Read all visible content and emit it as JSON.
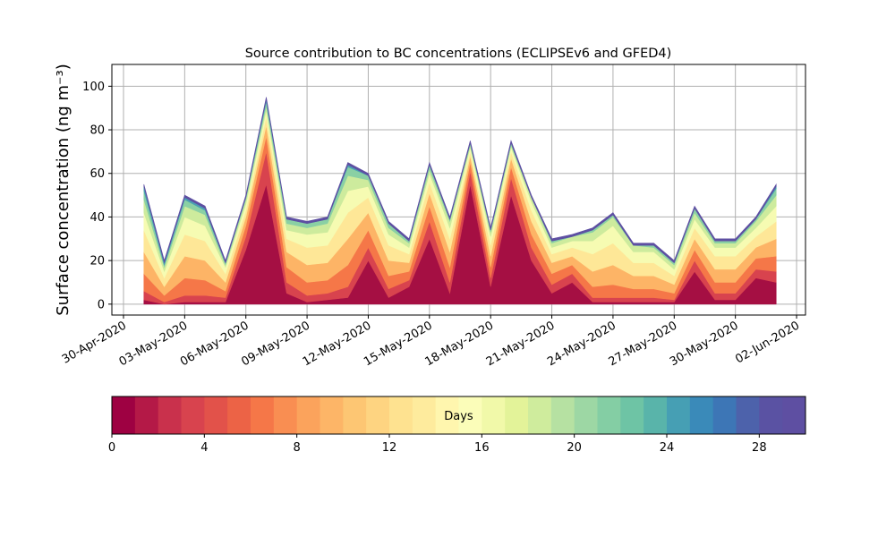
{
  "chart_data": {
    "type": "stacked_area",
    "title": "Source contribution to BC concentrations (ECLIPSEv6 and GFED4)",
    "y_label": "Surface concentration (ng m⁻³)",
    "x": [
      "2020-05-01",
      "2020-05-02",
      "2020-05-03",
      "2020-05-04",
      "2020-05-05",
      "2020-05-06",
      "2020-05-07",
      "2020-05-08",
      "2020-05-09",
      "2020-05-10",
      "2020-05-11",
      "2020-05-12",
      "2020-05-13",
      "2020-05-14",
      "2020-05-15",
      "2020-05-16",
      "2020-05-17",
      "2020-05-18",
      "2020-05-19",
      "2020-05-20",
      "2020-05-21",
      "2020-05-22",
      "2020-05-23",
      "2020-05-24",
      "2020-05-25",
      "2020-05-26",
      "2020-05-27",
      "2020-05-28",
      "2020-05-29",
      "2020-05-30",
      "2020-05-31",
      "2020-06-01"
    ],
    "series": [
      {
        "color": "#a50f43",
        "values": [
          2,
          0,
          1,
          1,
          1,
          25,
          55,
          5,
          1,
          2,
          3,
          20,
          3,
          8,
          30,
          5,
          55,
          8,
          50,
          20,
          5,
          10,
          1,
          1,
          1,
          1,
          1,
          15,
          2,
          2,
          12,
          10
        ]
      },
      {
        "color": "#d8434e",
        "values": [
          4,
          1,
          3,
          3,
          2,
          6,
          15,
          5,
          3,
          3,
          5,
          6,
          4,
          3,
          8,
          5,
          6,
          4,
          8,
          6,
          4,
          4,
          2,
          2,
          2,
          2,
          1,
          5,
          3,
          3,
          4,
          5
        ]
      },
      {
        "color": "#f57748",
        "values": [
          8,
          3,
          8,
          7,
          3,
          5,
          7,
          7,
          6,
          6,
          10,
          8,
          6,
          4,
          7,
          7,
          4,
          5,
          5,
          6,
          5,
          4,
          5,
          6,
          4,
          4,
          3,
          5,
          5,
          5,
          5,
          7
        ]
      },
      {
        "color": "#fdb466",
        "values": [
          10,
          4,
          10,
          9,
          4,
          4,
          5,
          7,
          8,
          8,
          12,
          8,
          7,
          4,
          6,
          7,
          3,
          5,
          4,
          6,
          5,
          4,
          7,
          9,
          6,
          6,
          4,
          5,
          6,
          6,
          5,
          8
        ]
      },
      {
        "color": "#fee797",
        "values": [
          10,
          4,
          10,
          9,
          4,
          3,
          4,
          6,
          8,
          8,
          12,
          7,
          7,
          4,
          5,
          6,
          2,
          5,
          3,
          5,
          4,
          4,
          8,
          10,
          6,
          6,
          4,
          5,
          6,
          6,
          5,
          8
        ]
      },
      {
        "color": "#f6fbb2",
        "values": [
          8,
          3,
          8,
          7,
          3,
          3,
          3,
          4,
          6,
          6,
          10,
          5,
          5,
          3,
          4,
          5,
          2,
          4,
          2,
          4,
          3,
          3,
          6,
          8,
          5,
          5,
          3,
          4,
          4,
          4,
          4,
          7
        ]
      },
      {
        "color": "#cdeb9d",
        "values": [
          6,
          2,
          5,
          5,
          1,
          2,
          2,
          3,
          3,
          4,
          7,
          3,
          3,
          2,
          2,
          3,
          1,
          2,
          1,
          2,
          2,
          2,
          4,
          4,
          3,
          2,
          2,
          3,
          2,
          2,
          3,
          5
        ]
      },
      {
        "color": "#8ad0a4",
        "values": [
          4,
          1,
          3,
          2,
          1,
          1,
          2,
          2,
          2,
          2,
          4,
          2,
          2,
          1,
          2,
          1,
          1,
          1,
          1,
          0,
          1,
          0,
          1,
          1,
          0,
          1,
          1,
          2,
          1,
          1,
          1,
          3
        ]
      },
      {
        "color": "#4a9fb3",
        "values": [
          2,
          1,
          1,
          1,
          0,
          0,
          1,
          0,
          0,
          0,
          1,
          0,
          0,
          0,
          0,
          0,
          0,
          0,
          0,
          0,
          0,
          0,
          0,
          0,
          0,
          0,
          0,
          0,
          0,
          0,
          0,
          1
        ]
      },
      {
        "color": "#5e4fa2",
        "values": [
          1,
          1,
          1,
          1,
          1,
          1,
          1,
          1,
          1,
          1,
          1,
          1,
          1,
          1,
          1,
          1,
          1,
          1,
          1,
          1,
          1,
          1,
          1,
          1,
          1,
          1,
          1,
          1,
          1,
          1,
          1,
          1
        ]
      }
    ],
    "xlim": [
      "2020-04-29T10:20",
      "2020-06-02T10:30"
    ],
    "xticks": [
      {
        "value": "2020-04-30",
        "label": "30-Apr-2020"
      },
      {
        "value": "2020-05-03",
        "label": "03-May-2020"
      },
      {
        "value": "2020-05-06",
        "label": "06-May-2020"
      },
      {
        "value": "2020-05-09",
        "label": "09-May-2020"
      },
      {
        "value": "2020-05-12",
        "label": "12-May-2020"
      },
      {
        "value": "2020-05-15",
        "label": "15-May-2020"
      },
      {
        "value": "2020-05-18",
        "label": "18-May-2020"
      },
      {
        "value": "2020-05-21",
        "label": "21-May-2020"
      },
      {
        "value": "2020-05-24",
        "label": "24-May-2020"
      },
      {
        "value": "2020-05-27",
        "label": "27-May-2020"
      },
      {
        "value": "2020-05-30",
        "label": "30-May-2020"
      },
      {
        "value": "2020-06-02",
        "label": "02-Jun-2020"
      }
    ],
    "ylim": [
      -5,
      110
    ],
    "yticks": [
      0,
      20,
      40,
      60,
      80,
      100
    ],
    "grid": true,
    "colorbar": {
      "label": "Days",
      "lim": [
        0,
        30
      ],
      "ticks": [
        0,
        4,
        8,
        12,
        16,
        20,
        24,
        28
      ],
      "colors": [
        "#9e0142",
        "#b41947",
        "#c9314c",
        "#d8434e",
        "#e2524a",
        "#ec6346",
        "#f57748",
        "#f98e52",
        "#fba35c",
        "#fdb567",
        "#fdc673",
        "#fed481",
        "#fee290",
        "#feeb9d",
        "#fff6ae",
        "#fbfdb9",
        "#f1f9a9",
        "#e3f399",
        "#cfec9d",
        "#b6e1a2",
        "#9dd7a4",
        "#84cea4",
        "#6ec4a5",
        "#59b4aa",
        "#469fb4",
        "#3a8ab9",
        "#3d76b6",
        "#4d62ab",
        "#5a52a3",
        "#5e4fa2"
      ]
    }
  }
}
